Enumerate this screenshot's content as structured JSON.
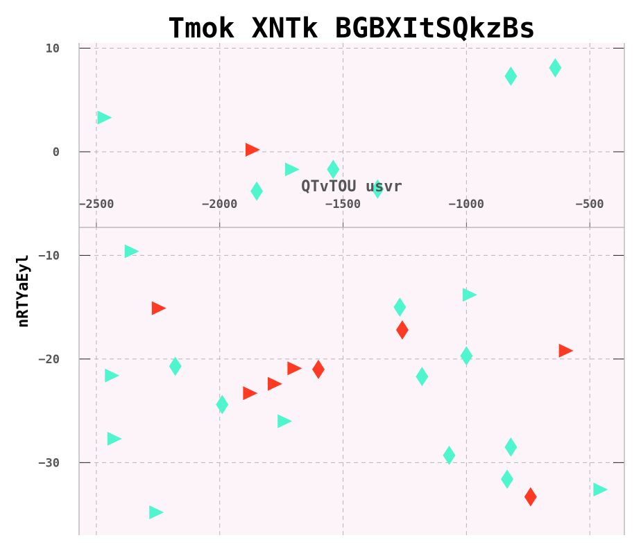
{
  "chart_data": {
    "type": "scatter",
    "title": "Tmok XNTk BGBXItSQkzBs",
    "xlabel": "QTvTOU usvr",
    "ylabel": "nRTYaEyl",
    "xlim": [
      -2570,
      -360
    ],
    "ylim": [
      -37,
      10.5
    ],
    "xticks": [
      -2500,
      -2000,
      -1500,
      -1000,
      -500
    ],
    "yticks": [
      10,
      0,
      -10,
      -20,
      -30
    ],
    "xtick_labels": [
      "−2500",
      "−2000",
      "−1500",
      "−1000",
      "−500"
    ],
    "ytick_labels": [
      "10",
      "0",
      "−10",
      "−20",
      "−30"
    ],
    "x_axis_position_y": -7.3,
    "grid": true,
    "background": "#fdf4fa",
    "series": [
      {
        "marker": "diamond",
        "color": "#4ff5cc",
        "points": [
          {
            "x": -820,
            "y": 7.3
          },
          {
            "x": -640,
            "y": 8.1
          },
          {
            "x": -1540,
            "y": -1.7
          },
          {
            "x": -1850,
            "y": -3.8
          },
          {
            "x": -1360,
            "y": -3.6
          },
          {
            "x": -1270,
            "y": -15
          },
          {
            "x": -2180,
            "y": -20.7
          },
          {
            "x": -1990,
            "y": -24.4
          },
          {
            "x": -1180,
            "y": -21.7
          },
          {
            "x": -1000,
            "y": -19.7
          },
          {
            "x": -1070,
            "y": -29.3
          },
          {
            "x": -820,
            "y": -28.5
          },
          {
            "x": -835,
            "y": -31.6
          }
        ]
      },
      {
        "marker": "triangle-right",
        "color": "#4ff5cc",
        "points": [
          {
            "x": -2470,
            "y": 3.3
          },
          {
            "x": -1710,
            "y": -1.7
          },
          {
            "x": -2360,
            "y": -9.6
          },
          {
            "x": -2440,
            "y": -21.6
          },
          {
            "x": -2430,
            "y": -27.7
          },
          {
            "x": -2260,
            "y": -34.8
          },
          {
            "x": -1740,
            "y": -26
          },
          {
            "x": -990,
            "y": -13.8
          },
          {
            "x": -460,
            "y": -32.6
          }
        ]
      },
      {
        "marker": "triangle-right",
        "color": "#fd3b24",
        "points": [
          {
            "x": -1870,
            "y": 0.2
          },
          {
            "x": -2250,
            "y": -15.1
          },
          {
            "x": -1880,
            "y": -23.3
          },
          {
            "x": -1780,
            "y": -22.4
          },
          {
            "x": -1700,
            "y": -20.9
          },
          {
            "x": -600,
            "y": -19.2
          }
        ]
      },
      {
        "marker": "diamond",
        "color": "#fd3b24",
        "points": [
          {
            "x": -1260,
            "y": -17.2
          },
          {
            "x": -1600,
            "y": -21
          },
          {
            "x": -740,
            "y": -33.3
          }
        ]
      }
    ]
  }
}
